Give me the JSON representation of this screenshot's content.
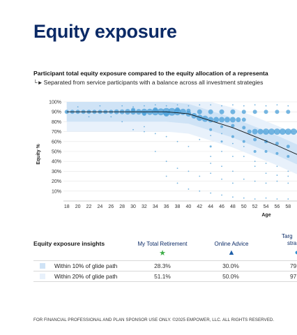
{
  "page": {
    "title": "Equity exposure",
    "footer": "FOR FINANCIAL PROFESSIONAL AND PLAN SPONSOR USE ONLY. ©2025 EMPOWER, LLC. ALL RIGHTS RESERVED."
  },
  "chart_heading": "Participant total equity exposure compared to the equity allocation of a representa",
  "chart_subheading": "Separated from service participants with a balance across all investment strategies",
  "chart_data": {
    "type": "scatter",
    "title": "",
    "xlabel": "Age",
    "ylabel": "Equity %",
    "x_ticks": [
      18,
      20,
      22,
      24,
      26,
      28,
      30,
      32,
      34,
      36,
      38,
      40,
      42,
      44,
      46,
      48,
      50,
      52,
      54,
      56,
      58
    ],
    "y_ticks": [
      "10%",
      "20%",
      "30%",
      "40%",
      "50%",
      "60%",
      "70%",
      "80%",
      "90%",
      "100%"
    ],
    "xlim": [
      17,
      60
    ],
    "ylim": [
      0,
      100
    ],
    "glide_path": {
      "name": "glide path",
      "x": [
        18,
        36,
        40,
        44,
        48,
        52,
        56,
        60
      ],
      "y": [
        90,
        90,
        88,
        81,
        74,
        65,
        56,
        46
      ]
    },
    "band_10": {
      "name": "Within 10% of glide path",
      "color": "#cfe3f6"
    },
    "band_20": {
      "name": "Within 20% of glide path",
      "color": "#e8f1fb"
    },
    "bubbles": [
      {
        "x": 18,
        "y": 90,
        "s": 3
      },
      {
        "x": 19,
        "y": 90,
        "s": 3
      },
      {
        "x": 20,
        "y": 90,
        "s": 3
      },
      {
        "x": 21,
        "y": 90,
        "s": 3
      },
      {
        "x": 22,
        "y": 90,
        "s": 3
      },
      {
        "x": 23,
        "y": 90,
        "s": 3
      },
      {
        "x": 24,
        "y": 90,
        "s": 3
      },
      {
        "x": 25,
        "y": 90,
        "s": 3
      },
      {
        "x": 26,
        "y": 90,
        "s": 3
      },
      {
        "x": 27,
        "y": 90,
        "s": 3.5
      },
      {
        "x": 28,
        "y": 90,
        "s": 3.5
      },
      {
        "x": 29,
        "y": 90,
        "s": 4
      },
      {
        "x": 30,
        "y": 90,
        "s": 4
      },
      {
        "x": 31,
        "y": 90,
        "s": 4
      },
      {
        "x": 32,
        "y": 90,
        "s": 4.5
      },
      {
        "x": 33,
        "y": 90,
        "s": 4.5
      },
      {
        "x": 34,
        "y": 90,
        "s": 5
      },
      {
        "x": 35,
        "y": 90,
        "s": 5
      },
      {
        "x": 36,
        "y": 90,
        "s": 5.5
      },
      {
        "x": 37,
        "y": 90,
        "s": 5.5
      },
      {
        "x": 38,
        "y": 90,
        "s": 5
      },
      {
        "x": 39,
        "y": 90,
        "s": 4.5
      },
      {
        "x": 40,
        "y": 88,
        "s": 4
      },
      {
        "x": 41,
        "y": 86,
        "s": 4
      },
      {
        "x": 42,
        "y": 84,
        "s": 4.5
      },
      {
        "x": 43,
        "y": 83,
        "s": 4.5
      },
      {
        "x": 44,
        "y": 82,
        "s": 4
      },
      {
        "x": 45,
        "y": 82,
        "s": 4
      },
      {
        "x": 46,
        "y": 82,
        "s": 4
      },
      {
        "x": 47,
        "y": 82,
        "s": 4
      },
      {
        "x": 48,
        "y": 82,
        "s": 4
      },
      {
        "x": 49,
        "y": 82,
        "s": 3.5
      },
      {
        "x": 50,
        "y": 82,
        "s": 3
      },
      {
        "x": 51,
        "y": 70,
        "s": 3
      },
      {
        "x": 52,
        "y": 70,
        "s": 4
      },
      {
        "x": 53,
        "y": 70,
        "s": 4
      },
      {
        "x": 54,
        "y": 70,
        "s": 4.5
      },
      {
        "x": 55,
        "y": 70,
        "s": 4.5
      },
      {
        "x": 56,
        "y": 70,
        "s": 4.5
      },
      {
        "x": 57,
        "y": 70,
        "s": 4.5
      },
      {
        "x": 58,
        "y": 70,
        "s": 4.5
      },
      {
        "x": 59,
        "y": 70,
        "s": 4.5
      },
      {
        "x": 60,
        "y": 70,
        "s": 4
      },
      {
        "x": 30,
        "y": 92,
        "s": 3
      },
      {
        "x": 32,
        "y": 88,
        "s": 3
      },
      {
        "x": 34,
        "y": 92,
        "s": 3.5
      },
      {
        "x": 36,
        "y": 88,
        "s": 4
      },
      {
        "x": 38,
        "y": 92,
        "s": 3.5
      },
      {
        "x": 40,
        "y": 91,
        "s": 3
      },
      {
        "x": 42,
        "y": 90,
        "s": 3.5
      },
      {
        "x": 44,
        "y": 90,
        "s": 3.5
      },
      {
        "x": 46,
        "y": 90,
        "s": 3.5
      },
      {
        "x": 48,
        "y": 90,
        "s": 3.5
      },
      {
        "x": 50,
        "y": 90,
        "s": 3
      },
      {
        "x": 52,
        "y": 90,
        "s": 3
      },
      {
        "x": 54,
        "y": 90,
        "s": 3
      },
      {
        "x": 56,
        "y": 90,
        "s": 3
      },
      {
        "x": 58,
        "y": 90,
        "s": 3
      },
      {
        "x": 44,
        "y": 72,
        "s": 2
      },
      {
        "x": 46,
        "y": 75,
        "s": 2
      },
      {
        "x": 48,
        "y": 76,
        "s": 2.5
      },
      {
        "x": 50,
        "y": 74,
        "s": 2.5
      },
      {
        "x": 52,
        "y": 62,
        "s": 2.5
      },
      {
        "x": 54,
        "y": 60,
        "s": 2.5
      },
      {
        "x": 56,
        "y": 58,
        "s": 2.5
      },
      {
        "x": 58,
        "y": 55,
        "s": 2.5
      },
      {
        "x": 50,
        "y": 60,
        "s": 2
      },
      {
        "x": 52,
        "y": 50,
        "s": 2
      },
      {
        "x": 54,
        "y": 50,
        "s": 2
      },
      {
        "x": 56,
        "y": 48,
        "s": 2
      },
      {
        "x": 58,
        "y": 45,
        "s": 2
      },
      {
        "x": 48,
        "y": 65,
        "s": 2
      },
      {
        "x": 46,
        "y": 60,
        "s": 1.5
      },
      {
        "x": 44,
        "y": 55,
        "s": 1.5
      }
    ],
    "dots": [
      {
        "x": 20,
        "y": 95
      },
      {
        "x": 24,
        "y": 96
      },
      {
        "x": 28,
        "y": 96
      },
      {
        "x": 30,
        "y": 95
      },
      {
        "x": 32,
        "y": 96
      },
      {
        "x": 34,
        "y": 97
      },
      {
        "x": 36,
        "y": 96
      },
      {
        "x": 38,
        "y": 97
      },
      {
        "x": 40,
        "y": 96
      },
      {
        "x": 42,
        "y": 97
      },
      {
        "x": 44,
        "y": 97
      },
      {
        "x": 46,
        "y": 96
      },
      {
        "x": 48,
        "y": 97
      },
      {
        "x": 50,
        "y": 96
      },
      {
        "x": 52,
        "y": 97
      },
      {
        "x": 54,
        "y": 96
      },
      {
        "x": 56,
        "y": 97
      },
      {
        "x": 58,
        "y": 96
      },
      {
        "x": 30,
        "y": 72
      },
      {
        "x": 32,
        "y": 70
      },
      {
        "x": 34,
        "y": 68
      },
      {
        "x": 36,
        "y": 65
      },
      {
        "x": 38,
        "y": 60
      },
      {
        "x": 40,
        "y": 55
      },
      {
        "x": 42,
        "y": 62
      },
      {
        "x": 44,
        "y": 66
      },
      {
        "x": 46,
        "y": 68
      },
      {
        "x": 48,
        "y": 58
      },
      {
        "x": 50,
        "y": 55
      },
      {
        "x": 52,
        "y": 40
      },
      {
        "x": 54,
        "y": 38
      },
      {
        "x": 56,
        "y": 35
      },
      {
        "x": 58,
        "y": 30
      },
      {
        "x": 36,
        "y": 40
      },
      {
        "x": 38,
        "y": 33
      },
      {
        "x": 40,
        "y": 30
      },
      {
        "x": 42,
        "y": 25
      },
      {
        "x": 44,
        "y": 38
      },
      {
        "x": 46,
        "y": 35
      },
      {
        "x": 48,
        "y": 30
      },
      {
        "x": 50,
        "y": 22
      },
      {
        "x": 52,
        "y": 20
      },
      {
        "x": 54,
        "y": 18
      },
      {
        "x": 56,
        "y": 20
      },
      {
        "x": 58,
        "y": 18
      },
      {
        "x": 44,
        "y": 28
      },
      {
        "x": 46,
        "y": 22
      },
      {
        "x": 48,
        "y": 18
      },
      {
        "x": 40,
        "y": 12
      },
      {
        "x": 42,
        "y": 10
      },
      {
        "x": 44,
        "y": 8
      },
      {
        "x": 46,
        "y": 6
      },
      {
        "x": 48,
        "y": 4
      },
      {
        "x": 50,
        "y": 3
      },
      {
        "x": 52,
        "y": 2
      },
      {
        "x": 54,
        "y": 3
      },
      {
        "x": 56,
        "y": 2
      },
      {
        "x": 58,
        "y": 2
      },
      {
        "x": 38,
        "y": 18
      },
      {
        "x": 36,
        "y": 25
      },
      {
        "x": 34,
        "y": 50
      },
      {
        "x": 32,
        "y": 75
      },
      {
        "x": 28,
        "y": 80
      },
      {
        "x": 26,
        "y": 85
      },
      {
        "x": 22,
        "y": 85
      },
      {
        "x": 50,
        "y": 45
      },
      {
        "x": 52,
        "y": 35
      },
      {
        "x": 54,
        "y": 28
      },
      {
        "x": 56,
        "y": 26
      },
      {
        "x": 58,
        "y": 25
      },
      {
        "x": 46,
        "y": 50
      },
      {
        "x": 48,
        "y": 45
      },
      {
        "x": 44,
        "y": 45
      }
    ],
    "colors": {
      "bubble": "#4a9fd8",
      "dot": "#5aa6da",
      "glide": "#111111",
      "band10": "#cfe3f6",
      "band20": "#e8f1fb"
    }
  },
  "insights": {
    "title": "Equity exposure insights",
    "columns": [
      {
        "label": "My Total Retirement",
        "symbol": "★",
        "symbol_color": "#3fae49"
      },
      {
        "label": "Online Advice",
        "symbol": "▲",
        "symbol_color": "#1f5fa8"
      },
      {
        "label_line1": "Targ",
        "label_line2": "stra",
        "symbol": "◐",
        "symbol_color": "#2b8fd1"
      }
    ],
    "rows": [
      {
        "label": "Within 10% of glide path",
        "swatch": "#cfe3f6",
        "values": [
          "28.3%",
          "30.0%",
          "79"
        ]
      },
      {
        "label": "Within 20% of glide path",
        "swatch": "#e8f1fb",
        "values": [
          "51.1%",
          "50.0%",
          "97"
        ]
      }
    ]
  }
}
